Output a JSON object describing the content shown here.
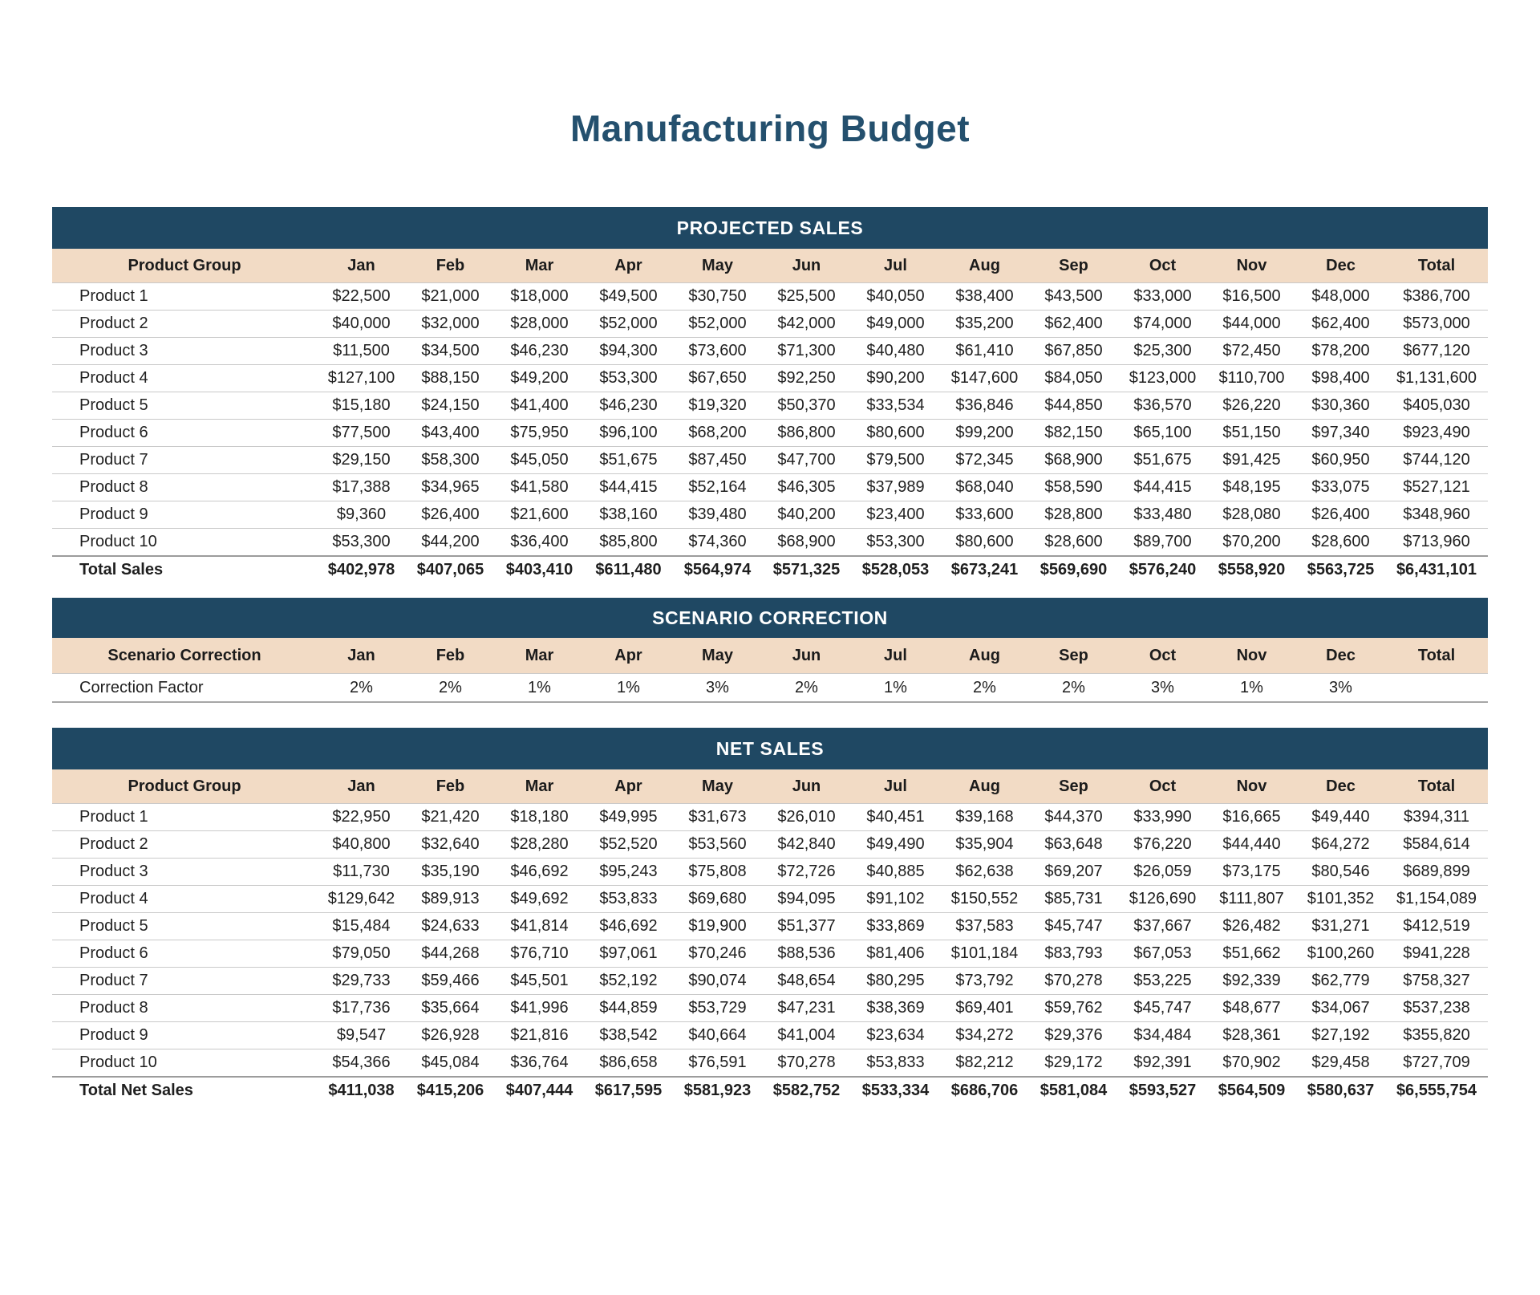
{
  "page": {
    "title": "Manufacturing Budget"
  },
  "colors": {
    "band_navy": "#1F4863",
    "header_peach": "#F2DBC5",
    "title_navy": "#24506E",
    "text": "#1F1F1F",
    "row_line": "#C9C9C9",
    "total_line": "#9C9C9C"
  },
  "months": [
    "Jan",
    "Feb",
    "Mar",
    "Apr",
    "May",
    "Jun",
    "Jul",
    "Aug",
    "Sep",
    "Oct",
    "Nov",
    "Dec",
    "Total"
  ],
  "sections": {
    "projected": {
      "header": "PROJECTED SALES",
      "first_col_header": "Product Group",
      "rows": [
        {
          "label": "Product 1",
          "values": [
            "$22,500",
            "$21,000",
            "$18,000",
            "$49,500",
            "$30,750",
            "$25,500",
            "$40,050",
            "$38,400",
            "$43,500",
            "$33,000",
            "$16,500",
            "$48,000",
            "$386,700"
          ]
        },
        {
          "label": "Product 2",
          "values": [
            "$40,000",
            "$32,000",
            "$28,000",
            "$52,000",
            "$52,000",
            "$42,000",
            "$49,000",
            "$35,200",
            "$62,400",
            "$74,000",
            "$44,000",
            "$62,400",
            "$573,000"
          ]
        },
        {
          "label": "Product 3",
          "values": [
            "$11,500",
            "$34,500",
            "$46,230",
            "$94,300",
            "$73,600",
            "$71,300",
            "$40,480",
            "$61,410",
            "$67,850",
            "$25,300",
            "$72,450",
            "$78,200",
            "$677,120"
          ]
        },
        {
          "label": "Product 4",
          "values": [
            "$127,100",
            "$88,150",
            "$49,200",
            "$53,300",
            "$67,650",
            "$92,250",
            "$90,200",
            "$147,600",
            "$84,050",
            "$123,000",
            "$110,700",
            "$98,400",
            "$1,131,600"
          ]
        },
        {
          "label": "Product 5",
          "values": [
            "$15,180",
            "$24,150",
            "$41,400",
            "$46,230",
            "$19,320",
            "$50,370",
            "$33,534",
            "$36,846",
            "$44,850",
            "$36,570",
            "$26,220",
            "$30,360",
            "$405,030"
          ]
        },
        {
          "label": "Product 6",
          "values": [
            "$77,500",
            "$43,400",
            "$75,950",
            "$96,100",
            "$68,200",
            "$86,800",
            "$80,600",
            "$99,200",
            "$82,150",
            "$65,100",
            "$51,150",
            "$97,340",
            "$923,490"
          ]
        },
        {
          "label": "Product 7",
          "values": [
            "$29,150",
            "$58,300",
            "$45,050",
            "$51,675",
            "$87,450",
            "$47,700",
            "$79,500",
            "$72,345",
            "$68,900",
            "$51,675",
            "$91,425",
            "$60,950",
            "$744,120"
          ]
        },
        {
          "label": "Product 8",
          "values": [
            "$17,388",
            "$34,965",
            "$41,580",
            "$44,415",
            "$52,164",
            "$46,305",
            "$37,989",
            "$68,040",
            "$58,590",
            "$44,415",
            "$48,195",
            "$33,075",
            "$527,121"
          ]
        },
        {
          "label": "Product 9",
          "values": [
            "$9,360",
            "$26,400",
            "$21,600",
            "$38,160",
            "$39,480",
            "$40,200",
            "$23,400",
            "$33,600",
            "$28,800",
            "$33,480",
            "$28,080",
            "$26,400",
            "$348,960"
          ]
        },
        {
          "label": "Product 10",
          "values": [
            "$53,300",
            "$44,200",
            "$36,400",
            "$85,800",
            "$74,360",
            "$68,900",
            "$53,300",
            "$80,600",
            "$28,600",
            "$89,700",
            "$70,200",
            "$28,600",
            "$713,960"
          ]
        }
      ],
      "total": {
        "label": "Total Sales",
        "values": [
          "$402,978",
          "$407,065",
          "$403,410",
          "$611,480",
          "$564,974",
          "$571,325",
          "$528,053",
          "$673,241",
          "$569,690",
          "$576,240",
          "$558,920",
          "$563,725",
          "$6,431,101"
        ]
      }
    },
    "scenario": {
      "header": "SCENARIO CORRECTION",
      "first_col_header": "Scenario Correction",
      "rows": [
        {
          "label": "Correction Factor",
          "values": [
            "2%",
            "2%",
            "1%",
            "1%",
            "3%",
            "2%",
            "1%",
            "2%",
            "2%",
            "3%",
            "1%",
            "3%",
            ""
          ]
        }
      ]
    },
    "net": {
      "header": "NET SALES",
      "first_col_header": "Product Group",
      "rows": [
        {
          "label": "Product 1",
          "values": [
            "$22,950",
            "$21,420",
            "$18,180",
            "$49,995",
            "$31,673",
            "$26,010",
            "$40,451",
            "$39,168",
            "$44,370",
            "$33,990",
            "$16,665",
            "$49,440",
            "$394,311"
          ]
        },
        {
          "label": "Product 2",
          "values": [
            "$40,800",
            "$32,640",
            "$28,280",
            "$52,520",
            "$53,560",
            "$42,840",
            "$49,490",
            "$35,904",
            "$63,648",
            "$76,220",
            "$44,440",
            "$64,272",
            "$584,614"
          ]
        },
        {
          "label": "Product 3",
          "values": [
            "$11,730",
            "$35,190",
            "$46,692",
            "$95,243",
            "$75,808",
            "$72,726",
            "$40,885",
            "$62,638",
            "$69,207",
            "$26,059",
            "$73,175",
            "$80,546",
            "$689,899"
          ]
        },
        {
          "label": "Product 4",
          "values": [
            "$129,642",
            "$89,913",
            "$49,692",
            "$53,833",
            "$69,680",
            "$94,095",
            "$91,102",
            "$150,552",
            "$85,731",
            "$126,690",
            "$111,807",
            "$101,352",
            "$1,154,089"
          ]
        },
        {
          "label": "Product 5",
          "values": [
            "$15,484",
            "$24,633",
            "$41,814",
            "$46,692",
            "$19,900",
            "$51,377",
            "$33,869",
            "$37,583",
            "$45,747",
            "$37,667",
            "$26,482",
            "$31,271",
            "$412,519"
          ]
        },
        {
          "label": "Product 6",
          "values": [
            "$79,050",
            "$44,268",
            "$76,710",
            "$97,061",
            "$70,246",
            "$88,536",
            "$81,406",
            "$101,184",
            "$83,793",
            "$67,053",
            "$51,662",
            "$100,260",
            "$941,228"
          ]
        },
        {
          "label": "Product 7",
          "values": [
            "$29,733",
            "$59,466",
            "$45,501",
            "$52,192",
            "$90,074",
            "$48,654",
            "$80,295",
            "$73,792",
            "$70,278",
            "$53,225",
            "$92,339",
            "$62,779",
            "$758,327"
          ]
        },
        {
          "label": "Product 8",
          "values": [
            "$17,736",
            "$35,664",
            "$41,996",
            "$44,859",
            "$53,729",
            "$47,231",
            "$38,369",
            "$69,401",
            "$59,762",
            "$45,747",
            "$48,677",
            "$34,067",
            "$537,238"
          ]
        },
        {
          "label": "Product 9",
          "values": [
            "$9,547",
            "$26,928",
            "$21,816",
            "$38,542",
            "$40,664",
            "$41,004",
            "$23,634",
            "$34,272",
            "$29,376",
            "$34,484",
            "$28,361",
            "$27,192",
            "$355,820"
          ]
        },
        {
          "label": "Product 10",
          "values": [
            "$54,366",
            "$45,084",
            "$36,764",
            "$86,658",
            "$76,591",
            "$70,278",
            "$53,833",
            "$82,212",
            "$29,172",
            "$92,391",
            "$70,902",
            "$29,458",
            "$727,709"
          ]
        }
      ],
      "total": {
        "label": "Total Net Sales",
        "values": [
          "$411,038",
          "$415,206",
          "$407,444",
          "$617,595",
          "$581,923",
          "$582,752",
          "$533,334",
          "$686,706",
          "$581,084",
          "$593,527",
          "$564,509",
          "$580,637",
          "$6,555,754"
        ]
      }
    }
  }
}
